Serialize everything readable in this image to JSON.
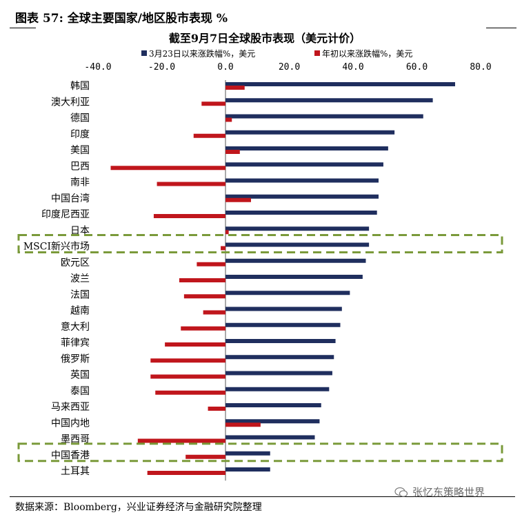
{
  "figure": {
    "title": "图表 57: 全球主要国家/地区股市表现 %",
    "source": "数据来源：Bloomberg，兴业证券经济与金融研究院整理",
    "watermark": "张忆东策略世界",
    "watermark_icon": "wechat-icon"
  },
  "chart_data": {
    "type": "bar",
    "orientation": "horizontal",
    "title": "截至9月7日全球股市表现（美元计价）",
    "xlim": [
      -40,
      80
    ],
    "xticks": [
      "-40.0",
      "-20.0",
      "0.0",
      "20.0",
      "40.0",
      "60.0",
      "80.0"
    ],
    "tick_values": [
      -40,
      -20,
      0,
      20,
      40,
      60,
      80
    ],
    "grid": false,
    "legend_position": "top",
    "categories": [
      "韩国",
      "澳大利亚",
      "德国",
      "印度",
      "美国",
      "巴西",
      "南非",
      "中国台湾",
      "印度尼西亚",
      "日本",
      "MSCI新兴市场",
      "欧元区",
      "波兰",
      "法国",
      "越南",
      "意大利",
      "菲律宾",
      "俄罗斯",
      "英国",
      "泰国",
      "马来西亚",
      "中国内地",
      "墨西哥",
      "中国香港",
      "土耳其"
    ],
    "series": [
      {
        "name": "3月23日以来涨跌幅%，美元",
        "color": "#1f2e5e",
        "values": [
          72,
          65,
          62,
          53,
          51,
          49.5,
          48,
          48,
          47.5,
          45,
          45,
          44,
          43,
          39,
          36.5,
          36,
          34.5,
          34,
          33.5,
          32.5,
          30,
          29.5,
          28,
          14,
          14
        ]
      },
      {
        "name": "年初以来涨跌幅%，美元",
        "color": "#c0161c",
        "values": [
          6,
          -7.5,
          2,
          -10,
          4.5,
          -36,
          -21.5,
          8,
          -22.5,
          1,
          -1.5,
          -9,
          -14.5,
          -13,
          -7,
          -14,
          -19,
          -23.5,
          -23.5,
          -22,
          -5.5,
          11,
          -27.5,
          -12.5,
          -24.5
        ]
      }
    ],
    "highlighted_categories": [
      "MSCI新兴市场",
      "中国香港"
    ]
  }
}
